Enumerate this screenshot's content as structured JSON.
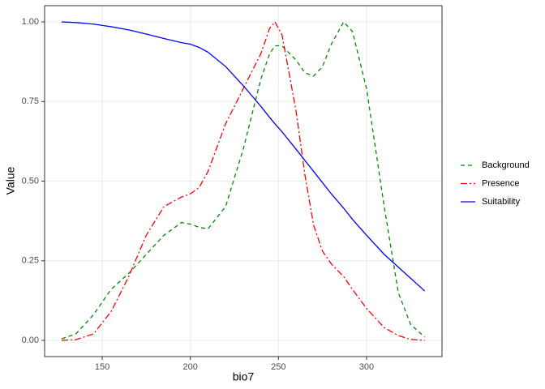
{
  "chart_data": {
    "type": "line",
    "x_label": "bio7",
    "y_label": "Value",
    "x": [
      127,
      135,
      145,
      155,
      165,
      175,
      185,
      195,
      200,
      205,
      210,
      220,
      230,
      240,
      245,
      248,
      252,
      260,
      265,
      270,
      275,
      280,
      287,
      292,
      300,
      310,
      318,
      325,
      333
    ],
    "series": [
      {
        "name": "Background",
        "color": "#008b00",
        "dash": "5,4",
        "values": [
          0.005,
          0.02,
          0.08,
          0.16,
          0.21,
          0.27,
          0.33,
          0.37,
          0.365,
          0.355,
          0.35,
          0.42,
          0.6,
          0.82,
          0.9,
          0.925,
          0.925,
          0.88,
          0.84,
          0.83,
          0.86,
          0.93,
          1.0,
          0.97,
          0.79,
          0.42,
          0.15,
          0.05,
          0.01
        ]
      },
      {
        "name": "Presence",
        "color": "#ff0000",
        "dash": "8,3,2,3",
        "values": [
          0,
          0.002,
          0.02,
          0.09,
          0.2,
          0.33,
          0.42,
          0.45,
          0.46,
          0.48,
          0.53,
          0.68,
          0.79,
          0.9,
          0.98,
          1.0,
          0.96,
          0.72,
          0.52,
          0.36,
          0.28,
          0.24,
          0.2,
          0.16,
          0.1,
          0.04,
          0.015,
          0.003,
          0
        ]
      },
      {
        "name": "Suitability",
        "color": "#0000ff",
        "dash": "",
        "values": [
          1.0,
          0.998,
          0.993,
          0.985,
          0.975,
          0.962,
          0.948,
          0.935,
          0.93,
          0.92,
          0.905,
          0.86,
          0.8,
          0.735,
          0.7,
          0.68,
          0.655,
          0.6,
          0.565,
          0.53,
          0.495,
          0.46,
          0.415,
          0.38,
          0.33,
          0.27,
          0.23,
          0.195,
          0.155
        ]
      }
    ],
    "xlim": [
      117.3,
      342.8
    ],
    "xticks": [
      150,
      200,
      250,
      300
    ],
    "ylim": [
      -0.051,
      1.051
    ],
    "yticks": [
      {
        "value": 0,
        "label": "0.00"
      },
      {
        "value": 0.25,
        "label": "0.25"
      },
      {
        "value": 0.5,
        "label": "0.50"
      },
      {
        "value": 0.75,
        "label": "0.75"
      },
      {
        "value": 1,
        "label": "1.00"
      }
    ],
    "grid": true
  }
}
